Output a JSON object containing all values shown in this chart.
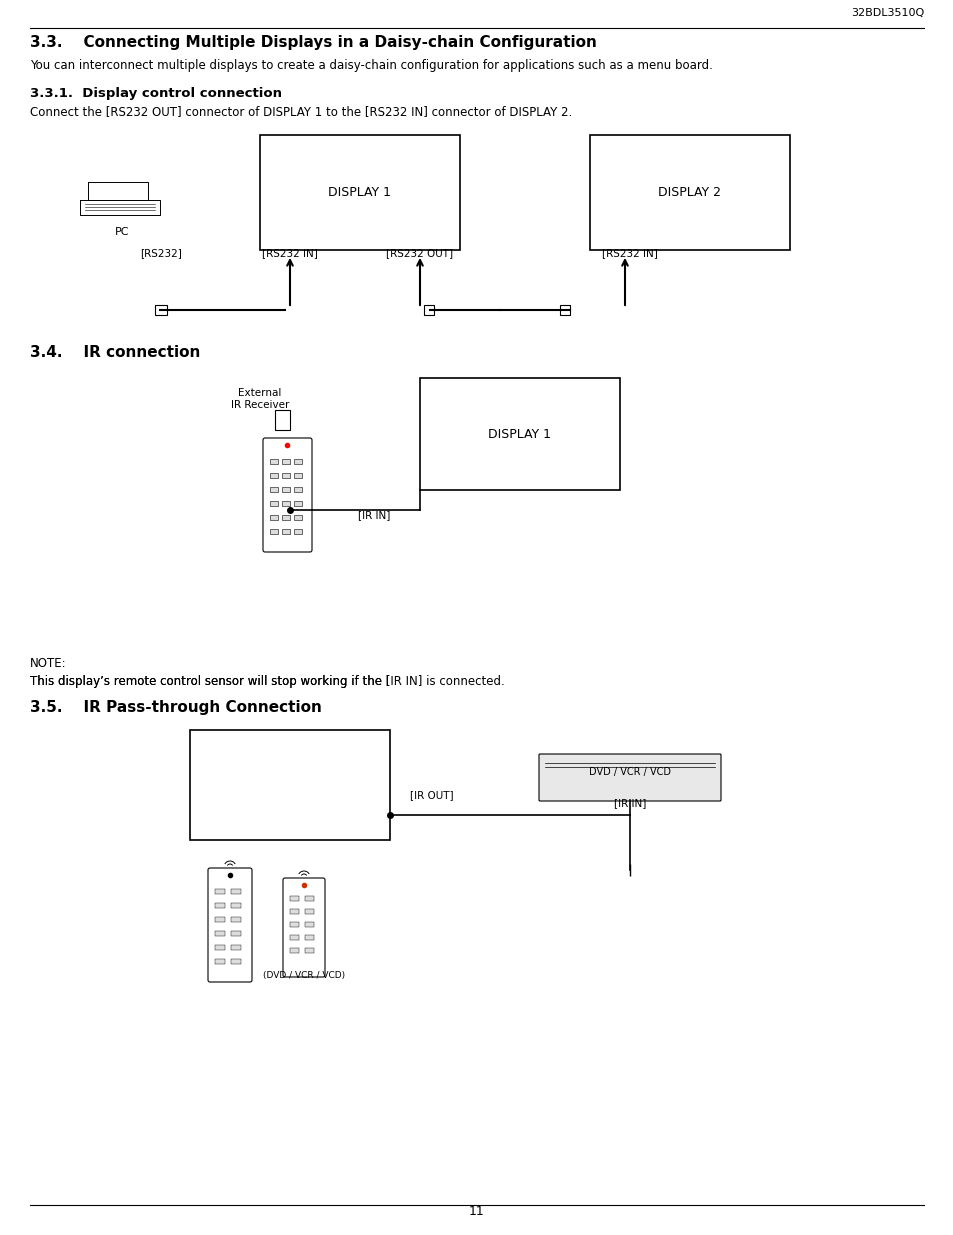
{
  "page_number": "11",
  "header_text": "32BDL3510Q",
  "bg_color": "#ffffff",
  "text_color": "#000000",
  "section_33_title": "3.3.    Connecting Multiple Displays in a Daisy-chain Configuration",
  "section_33_body": "You can interconnect multiple displays to create a daisy-chain configuration for applications such as a menu board.",
  "section_331_title": "3.3.1.  Display control connection",
  "section_331_body": "Connect the [RS232 OUT] connector of DISPLAY 1 to the [RS232 IN] connector of DISPLAY 2.",
  "section_34_title": "3.4.    IR connection",
  "note_title": "NOTE:",
  "note_body": "This display’s remote control sensor will stop working if the [IR IN] is connected.",
  "section_35_title": "3.5.    IR Pass-through Connection"
}
